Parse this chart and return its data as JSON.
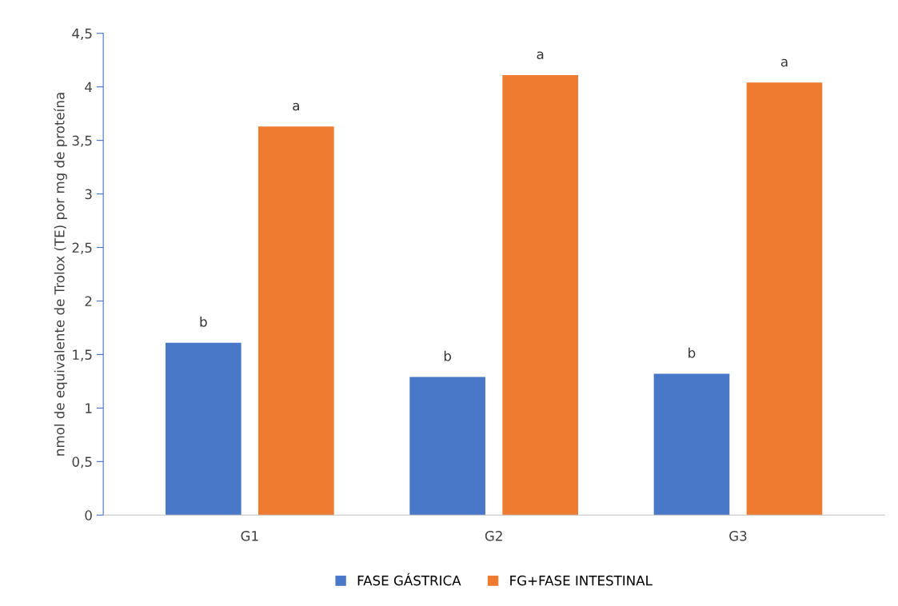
{
  "chart_data": {
    "type": "bar",
    "ylabel": "nmol de equivalente de Trolox (TE) por mg de proteína",
    "categories": [
      "G1",
      "G2",
      "G3"
    ],
    "series": [
      {
        "name": "FASE GÁSTRICA",
        "color": "#4a78c8",
        "values": [
          1.61,
          1.29,
          1.32
        ],
        "value_labels": [
          "b",
          "b",
          "b"
        ]
      },
      {
        "name": "FG+FASE INTESTINAL",
        "color": "#ee7b30",
        "values": [
          3.63,
          4.11,
          4.04
        ],
        "value_labels": [
          "a",
          "a",
          "a"
        ]
      }
    ],
    "ylim": [
      0,
      4.5
    ],
    "yticks": [
      0,
      {
        "value": 0.5,
        "label": "0,5"
      },
      1,
      {
        "value": 1.5,
        "label": "1,5"
      },
      2,
      {
        "value": 2.5,
        "label": "2,5"
      },
      3,
      {
        "value": 3.5,
        "label": "3,5"
      },
      4,
      {
        "value": 4.5,
        "label": "4,5"
      }
    ],
    "grid": false,
    "legend": "bottom"
  }
}
